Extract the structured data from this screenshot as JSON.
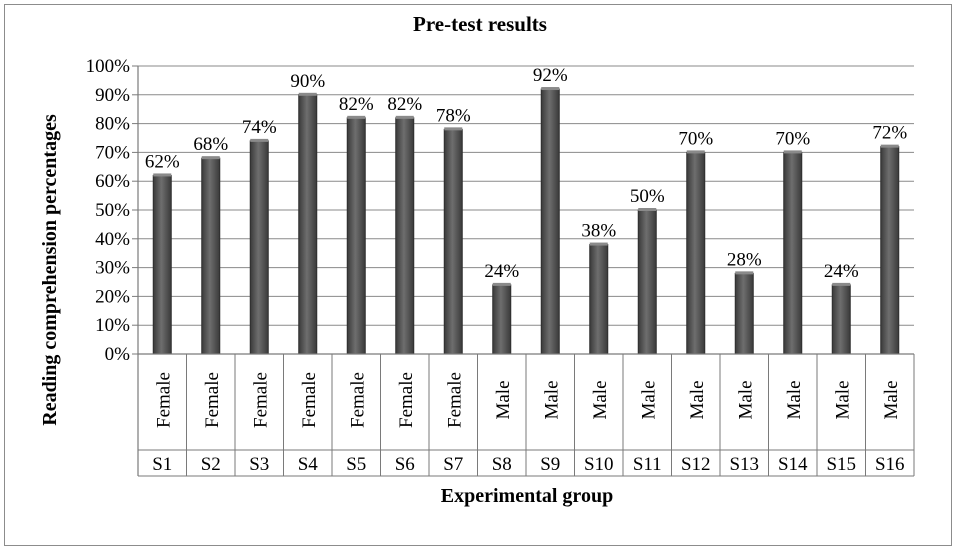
{
  "chart_data": {
    "type": "bar",
    "title": "Pre-test results",
    "xlabel": "Experimental group",
    "ylabel": "Reading comprehension  percentages",
    "ylim": [
      0,
      100
    ],
    "yticks": [
      "0%",
      "10%",
      "20%",
      "30%",
      "40%",
      "50%",
      "60%",
      "70%",
      "80%",
      "90%",
      "100%"
    ],
    "grid": true,
    "legend": "none",
    "categories": [
      "S1",
      "S2",
      "S3",
      "S4",
      "S5",
      "S6",
      "S7",
      "S8",
      "S9",
      "S10",
      "S11",
      "S12",
      "S13",
      "S14",
      "S15",
      "S16"
    ],
    "groups": [
      "Female",
      "Female",
      "Female",
      "Female",
      "Female",
      "Female",
      "Female",
      "Male",
      "Male",
      "Male",
      "Male",
      "Male",
      "Male",
      "Male",
      "Male",
      "Male"
    ],
    "values": [
      62,
      68,
      74,
      90,
      82,
      82,
      78,
      24,
      92,
      38,
      50,
      70,
      28,
      70,
      24,
      72
    ],
    "data_labels": [
      "62%",
      "68%",
      "74%",
      "90%",
      "82%",
      "82%",
      "78%",
      "24%",
      "92%",
      "38%",
      "50%",
      "70%",
      "28%",
      "70%",
      "24%",
      "72%"
    ],
    "bar_color": "#505050"
  }
}
